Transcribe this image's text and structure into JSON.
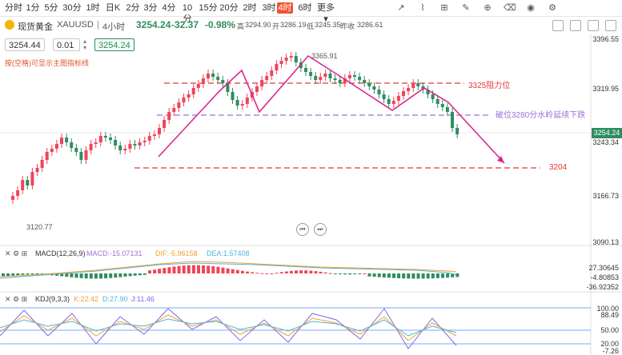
{
  "toolbar": {
    "timeframes": [
      "分时",
      "1分",
      "5分",
      "30分",
      "1时",
      "日K",
      "2分",
      "3分",
      "4分",
      "10分",
      "15分",
      "20分",
      "2时",
      "3时",
      "4时",
      "6时",
      "更多"
    ],
    "active_timeframe": "4时",
    "icons": [
      "draw-line-icon",
      "ruler-icon",
      "chart-settings-icon",
      "brush-icon",
      "zoom-icon",
      "eraser-icon",
      "visibility-icon",
      "settings-icon"
    ]
  },
  "header": {
    "symbol": "现货黄金",
    "code": "XAUUSD",
    "interval": "4小时",
    "price": "3254.24",
    "change": "-32.37",
    "change_pct": "-0.98%",
    "high_label": "高",
    "high": "3294.90",
    "open_label": "开",
    "open": "3286.19",
    "low_label": "低",
    "low": "3245.35",
    "prev_label": "昨收",
    "prev": "3286.61"
  },
  "trade": {
    "bid": "3254.44",
    "qty": "0.01",
    "ask": "3254.24",
    "hint": "按(空格)可显示主图指标线"
  },
  "main_chart": {
    "axis_labels": [
      "3396.55",
      "3319.95",
      "3243.34",
      "3166.73",
      "3090.13"
    ],
    "current_price": "3254.24",
    "annotations": {
      "resistance": "3325阻力位",
      "breakdown": "破位3280分水岭延续下跌",
      "target": "3204",
      "high_marker": "3365.91",
      "low_marker": "3120.77"
    },
    "colors": {
      "up": "#f0445a",
      "down": "#2f8d5f",
      "guide": "#d9288b",
      "resistance_line": "#e53935",
      "breakdown_line": "#9a6fd6"
    }
  },
  "macd": {
    "label": "MACD(12,26,9)",
    "macd": "MACD:-15.07131",
    "dif": "DIF:-5.96158",
    "dea": "DEA:1.57408",
    "axis_labels": [
      "27.30645",
      "-4.80853",
      "-36.92352"
    ]
  },
  "kdj": {
    "label": "KDJ(9,3,3)",
    "k": "K:22.42",
    "d": "D:27.90",
    "j": "J:11.46",
    "axis_labels": [
      "100.00",
      "88.49",
      "50.00",
      "20.00",
      "-7.26"
    ]
  }
}
